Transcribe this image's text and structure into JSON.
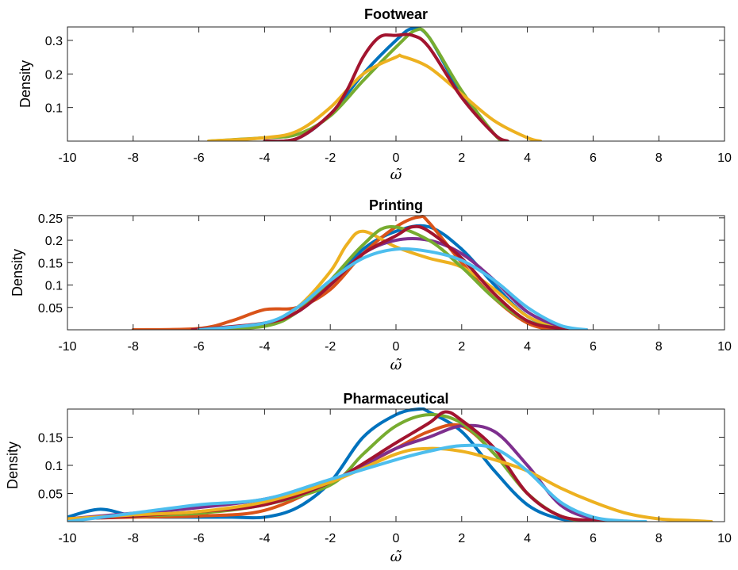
{
  "chart_data": [
    {
      "type": "line",
      "title": "Footwear",
      "xlabel": "ω̃",
      "ylabel": "Density",
      "xlim": [
        -10,
        10
      ],
      "ylim": [
        0,
        0.34
      ],
      "xticks": [
        -10,
        -8,
        -6,
        -4,
        -2,
        0,
        2,
        4,
        6,
        8,
        10
      ],
      "xtick_labels": [
        "-10",
        "-8",
        "-6",
        "-4",
        "-2",
        "0",
        "2",
        "4",
        "6",
        "8",
        "10"
      ],
      "yticks": [
        0.1,
        0.2,
        0.3
      ],
      "ytick_labels": [
        "0.1",
        "0.2",
        "0.3"
      ],
      "grid": false,
      "series": [
        {
          "color": "#0072BD",
          "x": [
            -4,
            -3,
            -2,
            -1,
            0,
            0.5,
            1,
            2,
            3,
            3.4
          ],
          "y": [
            0,
            0.008,
            0.08,
            0.2,
            0.3,
            0.335,
            0.31,
            0.14,
            0.02,
            0
          ]
        },
        {
          "color": "#77AC30",
          "x": [
            -5.7,
            -4,
            -3,
            -2,
            -1,
            0,
            0.6,
            1,
            2,
            3,
            3.3
          ],
          "y": [
            0,
            0.01,
            0.02,
            0.075,
            0.18,
            0.28,
            0.33,
            0.31,
            0.15,
            0.02,
            0
          ]
        },
        {
          "color": "#EDB120",
          "x": [
            -5.7,
            -4,
            -3,
            -2,
            -1,
            0,
            0.2,
            1,
            2,
            3,
            4,
            4.4
          ],
          "y": [
            0,
            0.01,
            0.03,
            0.1,
            0.2,
            0.25,
            0.252,
            0.22,
            0.14,
            0.06,
            0.01,
            0
          ]
        },
        {
          "color": "#A2142F",
          "x": [
            -4,
            -3,
            -2,
            -1.5,
            -1,
            -0.5,
            0,
            0.5,
            1,
            2,
            3,
            3.4
          ],
          "y": [
            0,
            0.008,
            0.08,
            0.15,
            0.25,
            0.31,
            0.315,
            0.315,
            0.28,
            0.13,
            0.02,
            0
          ]
        }
      ]
    },
    {
      "type": "line",
      "title": "Printing",
      "xlabel": "ω̃",
      "ylabel": "Density",
      "xlim": [
        -10,
        10
      ],
      "ylim": [
        0,
        0.255
      ],
      "xticks": [
        -10,
        -8,
        -6,
        -4,
        -2,
        0,
        2,
        4,
        6,
        8,
        10
      ],
      "xtick_labels": [
        "-10",
        "-8",
        "-6",
        "-4",
        "-2",
        "0",
        "2",
        "4",
        "6",
        "8",
        "10"
      ],
      "yticks": [
        0.05,
        0.1,
        0.15,
        0.2,
        0.25
      ],
      "ytick_labels": [
        "0.05",
        "0.1",
        "0.15",
        "0.2",
        "0.25"
      ],
      "grid": false,
      "series": [
        {
          "color": "#0072BD",
          "x": [
            -6,
            -4,
            -3,
            -2,
            -1,
            0,
            1,
            2,
            3,
            4,
            5,
            5.5
          ],
          "y": [
            0,
            0.01,
            0.04,
            0.1,
            0.18,
            0.22,
            0.23,
            0.18,
            0.1,
            0.03,
            0.005,
            0
          ]
        },
        {
          "color": "#D95319",
          "x": [
            -8,
            -6,
            -5,
            -4,
            -3,
            -2,
            -1,
            0,
            0.7,
            1,
            2,
            3,
            4,
            4.8
          ],
          "y": [
            0,
            0.003,
            0.02,
            0.045,
            0.05,
            0.09,
            0.17,
            0.23,
            0.252,
            0.24,
            0.15,
            0.07,
            0.015,
            0
          ]
        },
        {
          "color": "#EDB120",
          "x": [
            -6,
            -4,
            -3,
            -2,
            -1.5,
            -1,
            0,
            1,
            2,
            3,
            4,
            5,
            5.5
          ],
          "y": [
            0,
            0.01,
            0.05,
            0.13,
            0.19,
            0.22,
            0.185,
            0.16,
            0.14,
            0.09,
            0.03,
            0.005,
            0
          ]
        },
        {
          "color": "#7E2F8E",
          "x": [
            -6.2,
            -4,
            -3,
            -2,
            -1,
            0,
            1,
            2,
            3,
            4,
            5,
            5.7
          ],
          "y": [
            0,
            0.012,
            0.04,
            0.1,
            0.17,
            0.2,
            0.2,
            0.17,
            0.11,
            0.04,
            0.008,
            0
          ]
        },
        {
          "color": "#77AC30",
          "x": [
            -6,
            -4,
            -3,
            -2,
            -1,
            -0.2,
            1,
            2,
            3,
            4,
            5,
            5.5
          ],
          "y": [
            0,
            0.008,
            0.04,
            0.11,
            0.19,
            0.23,
            0.2,
            0.14,
            0.07,
            0.02,
            0.003,
            0
          ]
        },
        {
          "color": "#A2142F",
          "x": [
            -6.2,
            -4,
            -3,
            -2,
            -1,
            0,
            0.5,
            1,
            2,
            3,
            4,
            5,
            5.8
          ],
          "y": [
            0,
            0.015,
            0.04,
            0.1,
            0.17,
            0.21,
            0.23,
            0.22,
            0.16,
            0.08,
            0.02,
            0.003,
            0
          ]
        },
        {
          "color": "#4DBEEE",
          "x": [
            -6,
            -4,
            -3,
            -2,
            -1,
            0,
            1,
            2,
            3,
            4,
            5,
            5.8
          ],
          "y": [
            0,
            0.015,
            0.05,
            0.11,
            0.16,
            0.18,
            0.175,
            0.155,
            0.11,
            0.05,
            0.01,
            0
          ]
        }
      ]
    },
    {
      "type": "line",
      "title": "Pharmaceutical",
      "xlabel": "ω̃",
      "ylabel": "Density",
      "xlim": [
        -10,
        10
      ],
      "ylim": [
        0,
        0.2
      ],
      "xticks": [
        -10,
        -8,
        -6,
        -4,
        -2,
        0,
        2,
        4,
        6,
        8,
        10
      ],
      "xtick_labels": [
        "-10",
        "-8",
        "-6",
        "-4",
        "-2",
        "0",
        "2",
        "4",
        "6",
        "8",
        "10"
      ],
      "yticks": [
        0.05,
        0.1,
        0.15
      ],
      "ytick_labels": [
        "0.05",
        "0.1",
        "0.15"
      ],
      "grid": false,
      "series": [
        {
          "color": "#0072BD",
          "x": [
            -10,
            -9,
            -8,
            -7,
            -6,
            -5,
            -4,
            -3,
            -2,
            -1,
            0,
            0.7,
            1,
            2,
            3,
            4,
            5,
            6,
            6.5
          ],
          "y": [
            0.008,
            0.022,
            0.01,
            0.008,
            0.008,
            0.008,
            0.008,
            0.025,
            0.07,
            0.15,
            0.19,
            0.2,
            0.195,
            0.16,
            0.09,
            0.03,
            0.005,
            0.001,
            0
          ]
        },
        {
          "color": "#D95319",
          "x": [
            -10,
            -8,
            -6,
            -4,
            -2,
            0,
            1,
            2,
            3,
            4,
            5,
            6,
            6.5
          ],
          "y": [
            0.005,
            0.008,
            0.01,
            0.02,
            0.07,
            0.13,
            0.16,
            0.17,
            0.12,
            0.05,
            0.01,
            0.002,
            0
          ]
        },
        {
          "color": "#7E2F8E",
          "x": [
            -10,
            -8,
            -6,
            -4,
            -2,
            -1,
            0,
            1,
            2,
            3,
            4,
            5,
            6,
            7
          ],
          "y": [
            0.005,
            0.015,
            0.025,
            0.04,
            0.07,
            0.1,
            0.13,
            0.15,
            0.17,
            0.16,
            0.1,
            0.03,
            0.005,
            0
          ]
        },
        {
          "color": "#77AC30",
          "x": [
            -10,
            -8,
            -6,
            -4,
            -2,
            -1,
            0,
            1,
            2,
            3,
            4,
            5,
            6
          ],
          "y": [
            0.005,
            0.01,
            0.015,
            0.03,
            0.065,
            0.12,
            0.17,
            0.19,
            0.175,
            0.12,
            0.05,
            0.01,
            0
          ]
        },
        {
          "color": "#A2142F",
          "x": [
            -10,
            -8,
            -6,
            -4,
            -2,
            0,
            1,
            1.5,
            2,
            3,
            4,
            5,
            6,
            6.5
          ],
          "y": [
            0.004,
            0.01,
            0.018,
            0.03,
            0.07,
            0.14,
            0.175,
            0.195,
            0.18,
            0.13,
            0.05,
            0.01,
            0.002,
            0
          ]
        },
        {
          "color": "#EDB120",
          "x": [
            -10,
            -8,
            -6,
            -4,
            -2,
            0,
            1,
            2,
            3,
            4,
            5,
            6,
            7,
            8,
            9,
            9.6
          ],
          "y": [
            0.005,
            0.012,
            0.018,
            0.035,
            0.07,
            0.12,
            0.13,
            0.125,
            0.11,
            0.09,
            0.06,
            0.035,
            0.015,
            0.005,
            0.002,
            0
          ]
        },
        {
          "color": "#4DBEEE",
          "x": [
            -10,
            -8,
            -6,
            -4,
            -2,
            0,
            1,
            2,
            3,
            4,
            5,
            6,
            7,
            7.6
          ],
          "y": [
            0,
            0.015,
            0.03,
            0.04,
            0.075,
            0.11,
            0.125,
            0.135,
            0.13,
            0.09,
            0.035,
            0.008,
            0.001,
            0
          ]
        }
      ]
    }
  ]
}
